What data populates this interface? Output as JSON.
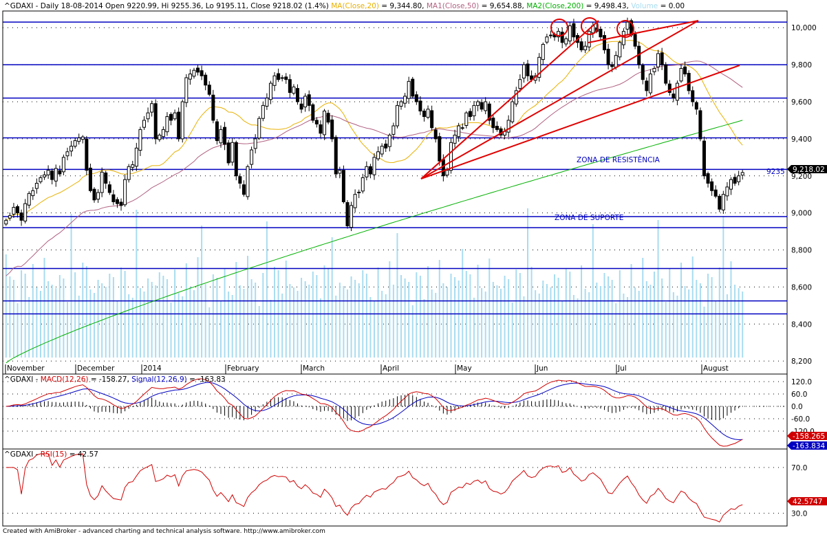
{
  "header": {
    "symbol": "^GDAXI",
    "info": " - Daily 18-08-2014 Open 9220.99, Hi 9255.36, Lo 9195.11, Close 9218.02 (1.4%) ",
    "ma20_label": "MA(Close,20)",
    "ma20_value": " = 9,344.80, ",
    "ma50_label": "MA1(Close,50)",
    "ma50_value": " = 9,654.88, ",
    "ma200_label": "MA2(Close,200)",
    "ma200_value": " = 9,498.43, ",
    "volume_label": "Volume",
    "volume_value": " = 0.00"
  },
  "macd_header": {
    "symbol": "^GDAXI - ",
    "macd_label": "MACD(12,26)",
    "macd_value": " = -158.27, ",
    "signal_label": "Signal(12,26,9)",
    "signal_value": " = -163.83"
  },
  "rsi_header": {
    "symbol": "^GDAXI - ",
    "rsi_label": "RSI(15)",
    "rsi_value": " = 42.57"
  },
  "annotations": {
    "resistance": "ZONA DE RESISTÊNCIA",
    "support": "ZONA DE SUPORTE",
    "level_9235": "9235"
  },
  "badges": {
    "price": "9,218.02",
    "macd": "-158.265",
    "signal": "-163.834",
    "rsi": "42.5747"
  },
  "footer": "Created with AmiBroker - advanced charting and technical analysis software. http://www.amibroker.com",
  "colors": {
    "candle_up": "#ffffff",
    "candle_down": "#000000",
    "ma20": "#e8b000",
    "ma50": "#b06080",
    "ma200": "#00b000",
    "volume": "#a8dcf0",
    "hlines": "#0000c0",
    "trendlines": "#e00000",
    "macd": "#0000c0",
    "signal": "#d00000",
    "rsi": "#d00000"
  },
  "chart_data": [
    {
      "type": "candlestick",
      "symbol": "^GDAXI",
      "x_labels": [
        "November",
        "December",
        "2014",
        "February",
        "March",
        "April",
        "May",
        "Jun",
        "Jul",
        "August"
      ],
      "y_ticks": [
        8200,
        8400,
        8600,
        8800,
        9000,
        9200,
        9400,
        9600,
        9800,
        10000
      ],
      "ylim": [
        8130,
        10090
      ],
      "last": {
        "open": 9220.99,
        "high": 9255.36,
        "low": 9195.11,
        "close": 9218.02
      },
      "horizontal_levels": [
        10030,
        9800,
        9620,
        9405,
        9235,
        8980,
        8920,
        8700,
        8525,
        8455
      ],
      "closes": [
        8960,
        8985,
        9030,
        9000,
        8960,
        9050,
        9105,
        9120,
        9160,
        9190,
        9205,
        9230,
        9180,
        9240,
        9210,
        9300,
        9330,
        9360,
        9390,
        9405,
        9410,
        9230,
        9120,
        9070,
        9110,
        9220,
        9160,
        9110,
        9060,
        9050,
        9040,
        9180,
        9250,
        9260,
        9350,
        9450,
        9500,
        9540,
        9590,
        9400,
        9420,
        9450,
        9520,
        9500,
        9540,
        9400,
        9600,
        9730,
        9750,
        9770,
        9760,
        9740,
        9690,
        9640,
        9500,
        9390,
        9450,
        9370,
        9270,
        9380,
        9200,
        9160,
        9100,
        9250,
        9340,
        9400,
        9510,
        9580,
        9620,
        9700,
        9740,
        9720,
        9730,
        9720,
        9650,
        9680,
        9600,
        9560,
        9630,
        9580,
        9500,
        9480,
        9430,
        9550,
        9490,
        9400,
        9210,
        9230,
        9060,
        8930,
        9040,
        9100,
        9110,
        9190,
        9250,
        9210,
        9300,
        9330,
        9360,
        9350,
        9420,
        9470,
        9580,
        9600,
        9630,
        9710,
        9630,
        9600,
        9550,
        9520,
        9560,
        9460,
        9400,
        9280,
        9200,
        9230,
        9380,
        9420,
        9470,
        9460,
        9540,
        9520,
        9580,
        9600,
        9560,
        9600,
        9500,
        9460,
        9450,
        9420,
        9440,
        9500,
        9600,
        9660,
        9720,
        9800,
        9740,
        9720,
        9740,
        9840,
        9910,
        9950,
        9960,
        9950,
        9980,
        9920,
        9940,
        10010,
        9950,
        9920,
        9880,
        9900,
        9980,
        10010,
        9980,
        9950,
        9880,
        9800,
        9790,
        9850,
        9920,
        9980,
        10030,
        9960,
        9900,
        9800,
        9720,
        9660,
        9750,
        9780,
        9860,
        9800,
        9700,
        9650,
        9620,
        9700,
        9780,
        9750,
        9660,
        9600,
        9560,
        9400,
        9200,
        9160,
        9120,
        9090,
        9020,
        9100,
        9140,
        9180,
        9160,
        9200,
        9218
      ]
    },
    {
      "type": "line",
      "title": "MACD(12,26)",
      "series": [
        {
          "name": "MACD(12,26)",
          "last": -158.27
        },
        {
          "name": "Signal(12,26,9)",
          "last": -163.83
        }
      ],
      "y_ticks": [
        120,
        60,
        0,
        -60,
        -120
      ],
      "ylim": [
        -200,
        150
      ]
    },
    {
      "type": "line",
      "title": "RSI(15)",
      "series": [
        {
          "name": "RSI(15)",
          "last": 42.57
        }
      ],
      "y_ticks": [
        70,
        30
      ],
      "ylim": [
        20,
        85
      ]
    }
  ]
}
